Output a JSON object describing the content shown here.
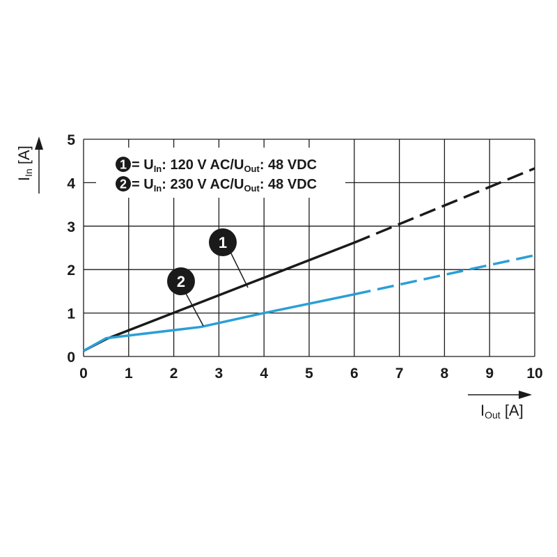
{
  "chart_data": {
    "type": "line",
    "xlabel": {
      "main": "I",
      "sub": "Out",
      "unit": " [A]"
    },
    "ylabel": {
      "main": "I",
      "sub": "In",
      "unit": " [A]"
    },
    "xlim": [
      0,
      10
    ],
    "ylim": [
      0,
      5
    ],
    "x_ticks": [
      "0",
      "1",
      "2",
      "3",
      "4",
      "5",
      "6",
      "7",
      "8",
      "9",
      "10"
    ],
    "y_ticks": [
      "0",
      "1",
      "2",
      "3",
      "4",
      "5"
    ],
    "grid": true,
    "legend_position": "top-left",
    "series": [
      {
        "id": "1",
        "color": "#1a1a1a",
        "legend": {
          "prefix": " = U",
          "sub1": "In",
          "mid": ": 120 V AC/U",
          "sub2": "Out",
          "suffix": ": 48 VDC"
        },
        "solid": [
          [
            0,
            0.13
          ],
          [
            0.5,
            0.4
          ],
          [
            6,
            2.62
          ]
        ],
        "dashed": [
          [
            6,
            2.62
          ],
          [
            10,
            4.33
          ]
        ]
      },
      {
        "id": "2",
        "color": "#2a9fd6",
        "legend": {
          "prefix": " = U",
          "sub1": "In",
          "mid": ": 230 V AC/U",
          "sub2": "Out",
          "suffix": ": 48 VDC"
        },
        "solid": [
          [
            0,
            0.13
          ],
          [
            0.5,
            0.42
          ],
          [
            2.6,
            0.68
          ],
          [
            4,
            1.0
          ],
          [
            6,
            1.43
          ]
        ],
        "dashed": [
          [
            6,
            1.43
          ],
          [
            10,
            2.33
          ]
        ]
      }
    ],
    "callouts": [
      {
        "label": "1",
        "x": 3.6,
        "y": 1.8
      },
      {
        "label": "2",
        "x": 2.6,
        "y": 0.68
      }
    ]
  }
}
